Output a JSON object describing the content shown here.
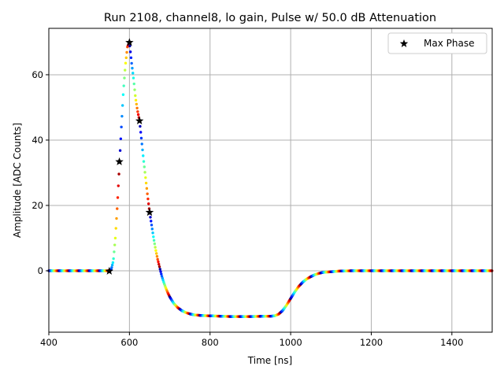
{
  "chart_data": {
    "type": "scatter",
    "title": "Run 2108, channel8, lo gain, Pulse w/ 50.0 dB Attenuation",
    "xlabel": "Time [ns]",
    "ylabel": "Amplitude [ADC Counts]",
    "xlim": [
      400,
      1500
    ],
    "ylim": [
      -18.8,
      74.2
    ],
    "xticks": [
      400,
      600,
      800,
      1000,
      1200,
      1400
    ],
    "yticks": [
      0,
      20,
      40,
      60
    ],
    "grid": true,
    "legend_position": "top-right",
    "colormap": "jet",
    "color_encoding_period_ns": 25,
    "series": [
      {
        "marker": "dot",
        "x": [
          400,
          550,
          555,
          560,
          565,
          570,
          575,
          580,
          585,
          590,
          595,
          600,
          605,
          610,
          615,
          620,
          625,
          630,
          635,
          640,
          645,
          650,
          655,
          660,
          665,
          670,
          675,
          680,
          685,
          690,
          695,
          700,
          710,
          720,
          730,
          740,
          750,
          760,
          780,
          800,
          850,
          900,
          950,
          960,
          970,
          980,
          990,
          1000,
          1010,
          1020,
          1030,
          1040,
          1050,
          1060,
          1070,
          1080,
          1100,
          1120,
          1150,
          1500
        ],
        "y": [
          0,
          0,
          0.5,
          3,
          10,
          20,
          32,
          44,
          55,
          63,
          68.5,
          70,
          64,
          59,
          53,
          49,
          46,
          40,
          34,
          28.5,
          23,
          18,
          14,
          10,
          6.5,
          3.5,
          1,
          -1.5,
          -3.5,
          -5.2,
          -6.7,
          -8,
          -10,
          -11.3,
          -12.2,
          -12.8,
          -13.2,
          -13.5,
          -13.7,
          -13.8,
          -14,
          -14,
          -13.9,
          -13.8,
          -13.3,
          -12.2,
          -10.5,
          -8.5,
          -6.5,
          -4.8,
          -3.5,
          -2.5,
          -1.8,
          -1.2,
          -0.8,
          -0.5,
          -0.3,
          -0.1,
          0,
          0
        ]
      },
      {
        "name": "Max Phase",
        "marker": "star",
        "color": "#000000",
        "x": [
          550,
          575,
          600,
          625,
          650
        ],
        "y": [
          0,
          33.5,
          70,
          46,
          18
        ]
      }
    ]
  }
}
